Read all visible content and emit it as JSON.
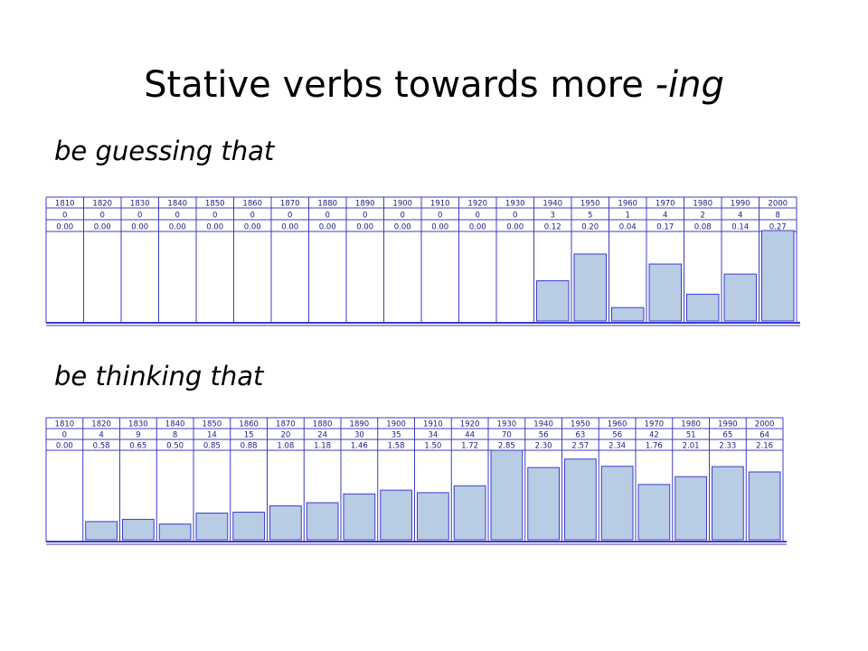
{
  "slide": {
    "title_main": "Stative verbs towards more ",
    "title_emph": "-ing"
  },
  "chart_data": [
    {
      "type": "bar",
      "title": "be guessing that",
      "categories": [
        "1810",
        "1820",
        "1830",
        "1840",
        "1850",
        "1860",
        "1870",
        "1880",
        "1890",
        "1900",
        "1910",
        "1920",
        "1930",
        "1940",
        "1950",
        "1960",
        "1970",
        "1980",
        "1990",
        "2000"
      ],
      "counts": [
        0,
        0,
        0,
        0,
        0,
        0,
        0,
        0,
        0,
        0,
        0,
        0,
        0,
        3,
        5,
        1,
        4,
        2,
        4,
        8
      ],
      "values": [
        "0.00",
        "0.00",
        "0.00",
        "0.00",
        "0.00",
        "0.00",
        "0.00",
        "0.00",
        "0.00",
        "0.00",
        "0.00",
        "0.00",
        "0.00",
        "0.12",
        "0.20",
        "0.04",
        "0.17",
        "0.08",
        "0.14",
        "0.27"
      ],
      "bar_color": "#b8cce4",
      "border_color": "#3c3cc8"
    },
    {
      "type": "bar",
      "title": "be thinking that",
      "categories": [
        "1810",
        "1820",
        "1830",
        "1840",
        "1850",
        "1860",
        "1870",
        "1880",
        "1890",
        "1900",
        "1910",
        "1920",
        "1930",
        "1940",
        "1950",
        "1960",
        "1970",
        "1980",
        "1990",
        "2000"
      ],
      "counts": [
        0,
        4,
        9,
        8,
        14,
        15,
        20,
        24,
        30,
        35,
        34,
        44,
        70,
        56,
        63,
        56,
        42,
        51,
        65,
        64
      ],
      "values": [
        "0.00",
        "0.58",
        "0.65",
        "0.50",
        "0.85",
        "0.88",
        "1.08",
        "1.18",
        "1.46",
        "1.58",
        "1.50",
        "1.72",
        "2.85",
        "2.30",
        "2.57",
        "2.34",
        "1.76",
        "2.01",
        "2.33",
        "2.16"
      ],
      "bar_color": "#b8cce4",
      "border_color": "#3c3cc8"
    }
  ]
}
